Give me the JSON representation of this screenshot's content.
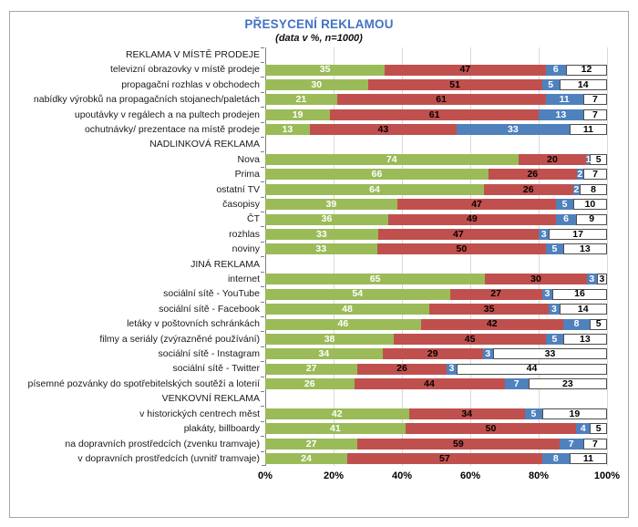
{
  "chart_data": {
    "type": "bar",
    "variant": "horizontal-100pct-stacked",
    "title": "PŘESYCENÍ REKLAMOU",
    "subtitle": "(data v %, n=1000)",
    "xlim": [
      0,
      100
    ],
    "x_ticks": [
      "0%",
      "20%",
      "40%",
      "60%",
      "80%",
      "100%"
    ],
    "grid": "vertical gridlines every 20%",
    "legend": "none",
    "segment_colors": [
      "#9BBB59",
      "#C0504D",
      "#4F81BD",
      "#FFFFFF"
    ],
    "segment_text_colors": [
      "#FFFFFF",
      "#000000",
      "#FFFFFF",
      "#000000"
    ],
    "accent_title_color": "#4472C4",
    "groups": [
      {
        "header": "REKLAMA V MÍSTĚ PRODEJE",
        "rows": [
          {
            "label": "televizní obrazovky v místě prodeje",
            "values": [
              35,
              47,
              6,
              12
            ]
          },
          {
            "label": "propagační rozhlas v obchodech",
            "values": [
              30,
              51,
              5,
              14
            ]
          },
          {
            "label": "nabídky výrobků na propagačních stojanech/paletách",
            "values": [
              21,
              61,
              11,
              7
            ]
          },
          {
            "label": "upoutávky v regálech a na pultech prodejen",
            "values": [
              19,
              61,
              13,
              7
            ]
          },
          {
            "label": "ochutnávky/ prezentace na místě prodeje",
            "values": [
              13,
              43,
              33,
              11
            ]
          }
        ]
      },
      {
        "header": "NADLINKOVÁ REKLAMA",
        "rows": [
          {
            "label": "Nova",
            "values": [
              74,
              20,
              1,
              5
            ]
          },
          {
            "label": "Prima",
            "values": [
              66,
              26,
              2,
              7
            ]
          },
          {
            "label": "ostatní TV",
            "values": [
              64,
              26,
              2,
              8
            ]
          },
          {
            "label": "časopisy",
            "values": [
              39,
              47,
              5,
              10
            ]
          },
          {
            "label": "ČT",
            "values": [
              36,
              49,
              6,
              9
            ]
          },
          {
            "label": "rozhlas",
            "values": [
              33,
              47,
              3,
              17
            ]
          },
          {
            "label": "noviny",
            "values": [
              33,
              50,
              5,
              13
            ]
          }
        ]
      },
      {
        "header": "JINÁ REKLAMA",
        "rows": [
          {
            "label": "internet",
            "values": [
              65,
              30,
              3,
              3
            ]
          },
          {
            "label": "sociální sítě - YouTube",
            "values": [
              54,
              27,
              3,
              16
            ]
          },
          {
            "label": "sociální sítě - Facebook",
            "values": [
              48,
              35,
              3,
              14
            ]
          },
          {
            "label": "letáky v poštovních schránkách",
            "values": [
              46,
              42,
              8,
              5
            ]
          },
          {
            "label": "filmy a seriály (zvýrazněné používání)",
            "values": [
              38,
              45,
              5,
              13
            ]
          },
          {
            "label": "sociální sítě - Instagram",
            "values": [
              34,
              29,
              3,
              33
            ]
          },
          {
            "label": "sociální sítě - Twitter",
            "values": [
              27,
              26,
              3,
              44
            ]
          },
          {
            "label": "písemné pozvánky do spotřebitelských soutěží a loterií",
            "values": [
              26,
              44,
              7,
              23
            ]
          }
        ]
      },
      {
        "header": "VENKOVNÍ REKLAMA",
        "rows": [
          {
            "label": "v historických centrech měst",
            "values": [
              42,
              34,
              5,
              19
            ]
          },
          {
            "label": "plakáty, billboardy",
            "values": [
              41,
              50,
              4,
              5
            ]
          },
          {
            "label": "na dopravních prostředcích (zvenku tramvaje)",
            "values": [
              27,
              59,
              7,
              7
            ]
          },
          {
            "label": "v dopravních prostředcích (uvnitř tramvaje)",
            "values": [
              24,
              57,
              8,
              11
            ]
          }
        ]
      }
    ]
  }
}
